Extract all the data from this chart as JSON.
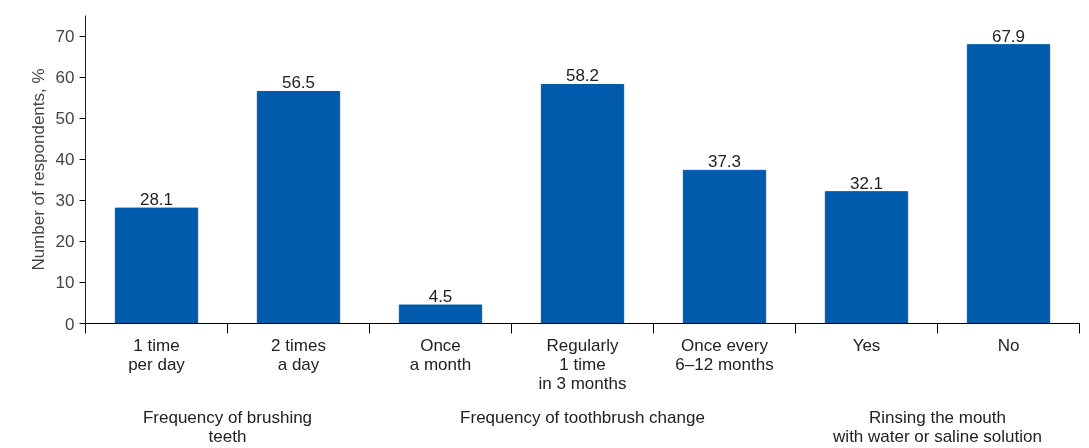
{
  "chart_data": {
    "type": "bar",
    "ylabel": "Number of respondents, %",
    "categories": [
      "1 time\nper day",
      "2 times\na day",
      "Once\na month",
      "Regularly\n1 time\nin 3 months",
      "Once every\n6–12 months",
      "Yes",
      "No"
    ],
    "values": [
      28.1,
      56.5,
      4.5,
      58.2,
      37.3,
      32.1,
      67.9
    ],
    "color": "#005bac",
    "ylim": [
      0,
      75
    ],
    "yticks": [
      0,
      10,
      20,
      30,
      40,
      50,
      60,
      70
    ],
    "grid": false,
    "data_labels": true,
    "annotations": [
      "Frequency of brushing\nteeth",
      "Frequency of toothbrush change",
      "Rinsing the mouth\nwith water or saline solution"
    ]
  }
}
